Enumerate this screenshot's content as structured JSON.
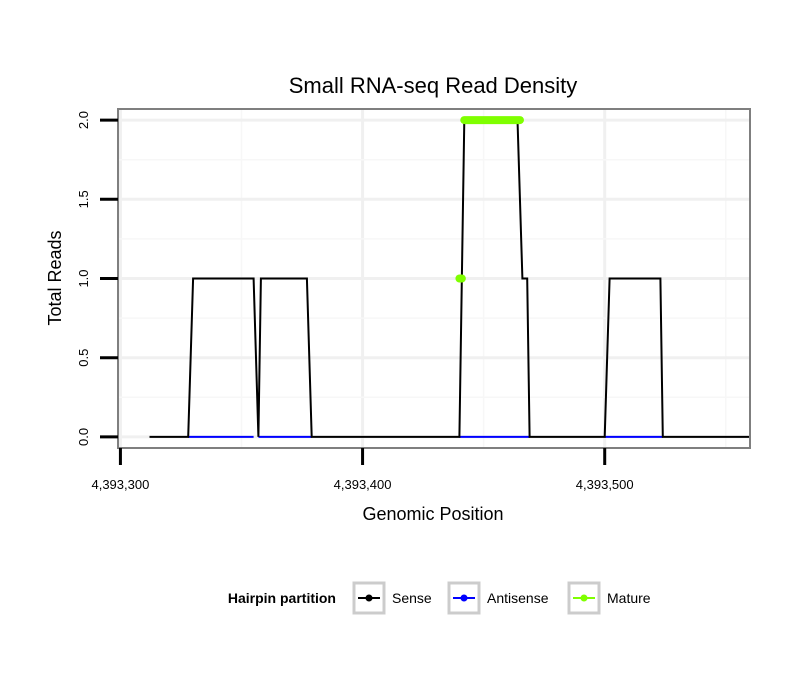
{
  "chart_data": {
    "type": "line",
    "title": "Small RNA-seq Read Density",
    "xlabel": "Genomic Position",
    "ylabel": "Total Reads",
    "xlim": [
      4393299,
      4393560
    ],
    "ylim": [
      -0.07,
      2.07
    ],
    "x_ticks": [
      4393300,
      4393400,
      4393500
    ],
    "x_tick_labels": [
      "4,393,300",
      "4,393,400",
      "4,393,500"
    ],
    "y_ticks": [
      0,
      0.5,
      1,
      1.5,
      2
    ],
    "y_tick_labels": [
      "0.0",
      "0.5",
      "1.0",
      "1.5",
      "2.0"
    ],
    "grid": true,
    "legend": {
      "title": "Hairpin partition",
      "position": "bottom",
      "entries": [
        {
          "label": "Sense",
          "color": "#000000"
        },
        {
          "label": "Antisense",
          "color": "#0000ff"
        },
        {
          "label": "Mature",
          "color": "#7fff00"
        }
      ]
    },
    "series": [
      {
        "name": "Sense",
        "color": "#000000",
        "x": [
          4393312,
          4393328,
          4393330,
          4393355,
          4393357,
          4393358,
          4393377,
          4393379,
          4393440,
          4393442,
          4393464,
          4393466,
          4393468,
          4393469,
          4393500,
          4393502,
          4393523,
          4393524,
          4393560
        ],
        "y": [
          0,
          0,
          1,
          1,
          0,
          1,
          1,
          0,
          0,
          2,
          2,
          1,
          1,
          0,
          0,
          1,
          1,
          0,
          0
        ]
      },
      {
        "name": "Antisense",
        "color": "#0000ff",
        "x": [
          4393328,
          4393355,
          4393357,
          4393379,
          4393440,
          4393469,
          4393500,
          4393524
        ],
        "y": [
          0,
          0,
          0,
          0,
          0,
          0,
          0,
          0
        ],
        "segments": [
          [
            0,
            1
          ],
          [
            2,
            3
          ],
          [
            4,
            5
          ],
          [
            6,
            7
          ]
        ]
      },
      {
        "name": "Mature",
        "color": "#7fff00",
        "x": [
          4393440,
          4393441
        ],
        "y": [
          1,
          1
        ],
        "bar_x": [
          4393442,
          4393465
        ],
        "bar_y": 2
      }
    ]
  }
}
